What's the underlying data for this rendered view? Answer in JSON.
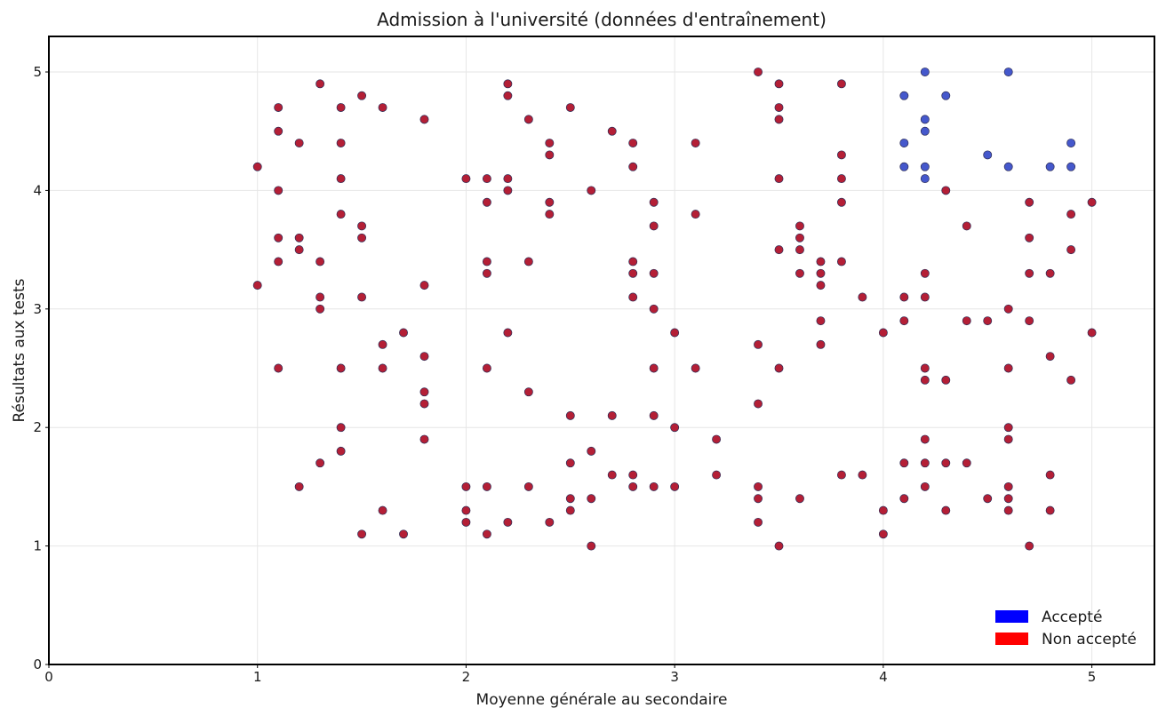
{
  "chart_data": {
    "type": "scatter",
    "title": "Admission à l'université (données d'entraînement)",
    "xlabel": "Moyenne générale au secondaire",
    "ylabel": "Résultats aux tests",
    "xlim": [
      0,
      5.3
    ],
    "ylim": [
      0,
      5.3
    ],
    "x_ticks": [
      0,
      1,
      2,
      3,
      4,
      5
    ],
    "y_ticks": [
      0,
      1,
      2,
      3,
      4,
      5
    ],
    "grid": true,
    "legend_position": "bottom-right",
    "legend": [
      {
        "label": "Accepté",
        "color": "#0000ff"
      },
      {
        "label": "Non accepté",
        "color": "#ff0000"
      }
    ],
    "series": [
      {
        "name": "Accepté",
        "color": "#3b4fc9",
        "points": [
          [
            4.1,
            4.8
          ],
          [
            4.1,
            4.4
          ],
          [
            4.1,
            4.2
          ],
          [
            4.2,
            5.0
          ],
          [
            4.2,
            4.6
          ],
          [
            4.2,
            4.5
          ],
          [
            4.2,
            4.2
          ],
          [
            4.2,
            4.1
          ],
          [
            4.3,
            4.8
          ],
          [
            4.5,
            4.3
          ],
          [
            4.6,
            5.0
          ],
          [
            4.6,
            4.2
          ],
          [
            4.8,
            4.2
          ],
          [
            4.9,
            4.4
          ],
          [
            4.9,
            4.2
          ]
        ]
      },
      {
        "name": "Non accepté",
        "color": "#b0132b",
        "points": [
          [
            1.0,
            4.2
          ],
          [
            1.0,
            3.2
          ],
          [
            1.1,
            4.7
          ],
          [
            1.1,
            4.5
          ],
          [
            1.1,
            4.0
          ],
          [
            1.1,
            3.6
          ],
          [
            1.1,
            3.4
          ],
          [
            1.1,
            2.5
          ],
          [
            1.2,
            4.4
          ],
          [
            1.2,
            3.6
          ],
          [
            1.2,
            3.5
          ],
          [
            1.2,
            1.5
          ],
          [
            1.3,
            4.9
          ],
          [
            1.3,
            3.4
          ],
          [
            1.3,
            3.1
          ],
          [
            1.3,
            3.0
          ],
          [
            1.3,
            1.7
          ],
          [
            1.4,
            4.7
          ],
          [
            1.4,
            4.4
          ],
          [
            1.4,
            4.1
          ],
          [
            1.4,
            3.8
          ],
          [
            1.4,
            2.5
          ],
          [
            1.4,
            2.0
          ],
          [
            1.4,
            1.8
          ],
          [
            1.5,
            4.8
          ],
          [
            1.5,
            3.7
          ],
          [
            1.5,
            3.6
          ],
          [
            1.5,
            3.1
          ],
          [
            1.5,
            1.1
          ],
          [
            1.6,
            4.7
          ],
          [
            1.6,
            2.7
          ],
          [
            1.6,
            2.5
          ],
          [
            1.6,
            1.3
          ],
          [
            1.7,
            2.8
          ],
          [
            1.7,
            1.1
          ],
          [
            1.8,
            4.6
          ],
          [
            1.8,
            3.2
          ],
          [
            1.8,
            2.6
          ],
          [
            1.8,
            2.3
          ],
          [
            1.8,
            2.2
          ],
          [
            1.8,
            1.9
          ],
          [
            2.0,
            4.1
          ],
          [
            2.0,
            1.5
          ],
          [
            2.0,
            1.3
          ],
          [
            2.0,
            1.2
          ],
          [
            2.1,
            4.1
          ],
          [
            2.1,
            3.9
          ],
          [
            2.1,
            3.4
          ],
          [
            2.1,
            3.3
          ],
          [
            2.1,
            2.5
          ],
          [
            2.1,
            1.5
          ],
          [
            2.1,
            1.1
          ],
          [
            2.2,
            4.9
          ],
          [
            2.2,
            4.8
          ],
          [
            2.2,
            4.1
          ],
          [
            2.2,
            4.0
          ],
          [
            2.2,
            2.8
          ],
          [
            2.2,
            1.2
          ],
          [
            2.3,
            4.6
          ],
          [
            2.3,
            3.4
          ],
          [
            2.3,
            2.3
          ],
          [
            2.3,
            1.5
          ],
          [
            2.4,
            4.4
          ],
          [
            2.4,
            4.3
          ],
          [
            2.4,
            3.9
          ],
          [
            2.4,
            3.8
          ],
          [
            2.4,
            1.2
          ],
          [
            2.5,
            4.7
          ],
          [
            2.5,
            2.1
          ],
          [
            2.5,
            1.7
          ],
          [
            2.5,
            1.4
          ],
          [
            2.5,
            1.3
          ],
          [
            2.6,
            4.0
          ],
          [
            2.6,
            1.8
          ],
          [
            2.6,
            1.4
          ],
          [
            2.6,
            1.0
          ],
          [
            2.7,
            4.5
          ],
          [
            2.7,
            2.1
          ],
          [
            2.7,
            1.6
          ],
          [
            2.8,
            4.4
          ],
          [
            2.8,
            4.2
          ],
          [
            2.8,
            3.4
          ],
          [
            2.8,
            3.3
          ],
          [
            2.8,
            3.1
          ],
          [
            2.8,
            1.6
          ],
          [
            2.8,
            1.5
          ],
          [
            2.9,
            3.9
          ],
          [
            2.9,
            3.7
          ],
          [
            2.9,
            3.3
          ],
          [
            2.9,
            3.0
          ],
          [
            2.9,
            2.5
          ],
          [
            2.9,
            2.1
          ],
          [
            2.9,
            1.5
          ],
          [
            3.0,
            2.8
          ],
          [
            3.0,
            2.0
          ],
          [
            3.0,
            1.5
          ],
          [
            3.1,
            4.4
          ],
          [
            3.1,
            3.8
          ],
          [
            3.1,
            2.5
          ],
          [
            3.2,
            1.9
          ],
          [
            3.2,
            1.6
          ],
          [
            3.4,
            5.0
          ],
          [
            3.4,
            2.7
          ],
          [
            3.4,
            2.2
          ],
          [
            3.4,
            1.5
          ],
          [
            3.4,
            1.4
          ],
          [
            3.4,
            1.2
          ],
          [
            3.5,
            4.9
          ],
          [
            3.5,
            4.7
          ],
          [
            3.5,
            4.6
          ],
          [
            3.5,
            4.1
          ],
          [
            3.5,
            3.5
          ],
          [
            3.5,
            2.5
          ],
          [
            3.5,
            1.0
          ],
          [
            3.6,
            3.7
          ],
          [
            3.6,
            3.6
          ],
          [
            3.6,
            3.5
          ],
          [
            3.6,
            3.3
          ],
          [
            3.6,
            1.4
          ],
          [
            3.7,
            3.4
          ],
          [
            3.7,
            3.3
          ],
          [
            3.7,
            3.2
          ],
          [
            3.7,
            2.9
          ],
          [
            3.7,
            2.7
          ],
          [
            3.8,
            4.9
          ],
          [
            3.8,
            4.3
          ],
          [
            3.8,
            4.1
          ],
          [
            3.8,
            3.9
          ],
          [
            3.8,
            3.4
          ],
          [
            3.8,
            1.6
          ],
          [
            3.9,
            3.1
          ],
          [
            3.9,
            1.6
          ],
          [
            4.0,
            2.8
          ],
          [
            4.0,
            1.3
          ],
          [
            4.0,
            1.1
          ],
          [
            4.1,
            3.1
          ],
          [
            4.1,
            2.9
          ],
          [
            4.1,
            1.7
          ],
          [
            4.1,
            1.4
          ],
          [
            4.2,
            3.3
          ],
          [
            4.2,
            3.1
          ],
          [
            4.2,
            2.5
          ],
          [
            4.2,
            2.4
          ],
          [
            4.2,
            1.9
          ],
          [
            4.2,
            1.7
          ],
          [
            4.2,
            1.5
          ],
          [
            4.3,
            4.0
          ],
          [
            4.3,
            2.4
          ],
          [
            4.3,
            1.7
          ],
          [
            4.3,
            1.3
          ],
          [
            4.4,
            3.7
          ],
          [
            4.4,
            2.9
          ],
          [
            4.4,
            1.7
          ],
          [
            4.5,
            2.9
          ],
          [
            4.5,
            1.4
          ],
          [
            4.6,
            3.0
          ],
          [
            4.6,
            2.5
          ],
          [
            4.6,
            2.0
          ],
          [
            4.6,
            1.9
          ],
          [
            4.6,
            1.5
          ],
          [
            4.6,
            1.4
          ],
          [
            4.6,
            1.3
          ],
          [
            4.7,
            3.9
          ],
          [
            4.7,
            3.6
          ],
          [
            4.7,
            3.3
          ],
          [
            4.7,
            2.9
          ],
          [
            4.7,
            1.0
          ],
          [
            4.8,
            3.3
          ],
          [
            4.8,
            2.6
          ],
          [
            4.8,
            1.6
          ],
          [
            4.8,
            1.3
          ],
          [
            4.9,
            3.8
          ],
          [
            4.9,
            3.5
          ],
          [
            4.9,
            2.4
          ],
          [
            5.0,
            3.9
          ],
          [
            5.0,
            2.8
          ]
        ]
      }
    ]
  }
}
